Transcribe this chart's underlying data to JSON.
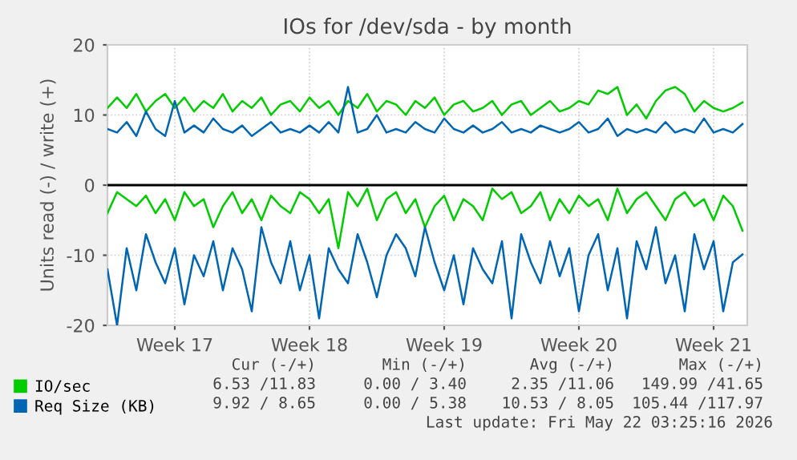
{
  "chart_data": {
    "type": "line",
    "title": "IOs for /dev/sda - by month",
    "ylabel": "Units read (-) / write (+)",
    "categories": [
      null,
      null,
      null,
      null,
      null,
      null,
      null,
      "Week 17",
      null,
      null,
      null,
      null,
      null,
      null,
      null,
      null,
      null,
      null,
      null,
      null,
      null,
      "Week 18",
      null,
      null,
      null,
      null,
      null,
      null,
      null,
      null,
      null,
      null,
      null,
      null,
      null,
      "Week 19",
      null,
      null,
      null,
      null,
      null,
      null,
      null,
      null,
      null,
      null,
      null,
      null,
      null,
      "Week 20",
      null,
      null,
      null,
      null,
      null,
      null,
      null,
      null,
      null,
      null,
      null,
      null,
      null,
      "Week 21",
      null,
      null,
      null
    ],
    "series": [
      {
        "name": "IO/sec",
        "color": "#00cc00",
        "values": [
          11,
          12.5,
          11,
          13,
          10.5,
          12,
          13,
          11,
          12.5,
          10.5,
          12,
          11,
          13,
          10.5,
          12,
          11,
          12.5,
          10,
          11.5,
          12,
          10.5,
          12.5,
          11,
          12,
          10,
          12,
          11,
          13,
          10.5,
          12,
          11.5,
          10,
          12,
          11,
          12.5,
          10,
          11.5,
          12,
          10.5,
          11,
          12,
          10,
          11.5,
          12,
          10,
          11,
          12,
          10.5,
          11,
          12,
          11.5,
          13.5,
          13,
          14,
          10,
          11.5,
          9.5,
          12,
          13.5,
          14,
          13,
          10.5,
          12,
          11,
          10.5,
          11,
          11.8
        ]
      },
      {
        "name": "Req Size (KB)",
        "color": "#0066b3",
        "values": [
          8,
          7.5,
          9,
          7,
          10.5,
          8,
          7,
          12,
          7.5,
          8.5,
          7.5,
          9.5,
          8,
          7.5,
          8.5,
          7,
          8,
          9,
          7.5,
          8,
          7.5,
          8.5,
          7.5,
          9,
          7.5,
          14,
          7.5,
          8,
          10,
          7.5,
          8,
          7.5,
          9,
          8,
          7.5,
          9.5,
          8,
          7.5,
          8.5,
          7.5,
          8,
          9,
          7.5,
          8,
          7.5,
          8.5,
          8,
          7.5,
          8,
          9,
          7.5,
          8,
          9.5,
          7,
          8,
          7.5,
          8,
          7.5,
          9,
          7.5,
          8,
          7.5,
          9.5,
          7.5,
          8,
          7.5,
          8.7
        ]
      },
      {
        "color": "#00cc00",
        "values": [
          -4,
          -1,
          -2,
          -3,
          -1.5,
          -4,
          -2,
          -5,
          -1,
          -3,
          -2,
          -6,
          -3,
          -1,
          -4,
          -2,
          -5,
          -1.5,
          -3,
          -4,
          -1,
          -2,
          -4,
          -2,
          -9,
          -1,
          -3,
          -0.5,
          -5,
          -2,
          -1,
          -4,
          -2,
          -6,
          -3,
          -1.5,
          -5,
          -2,
          -3,
          -5,
          -0.5,
          -2,
          -1,
          -4,
          -3,
          -1,
          -5,
          -2,
          -4,
          -1.5,
          -3,
          -2,
          -5,
          -0.5,
          -4,
          -2,
          -1,
          -3,
          -5,
          -2,
          -1,
          -3,
          -2,
          -5,
          -1.5,
          -3,
          -6.5
        ]
      },
      {
        "color": "#0066b3",
        "values": [
          -12,
          -20,
          -9,
          -15,
          -7,
          -11,
          -14,
          -9,
          -17,
          -10,
          -13,
          -8,
          -15,
          -9,
          -12,
          -18,
          -6,
          -11,
          -14,
          -8,
          -15,
          -10,
          -19,
          -9,
          -12,
          -14,
          -7,
          -11,
          -16,
          -10,
          -7,
          -9,
          -13,
          -6,
          -11,
          -15,
          -10,
          -17,
          -9,
          -12,
          -14,
          -8,
          -19,
          -7,
          -11,
          -14,
          -8,
          -13,
          -9,
          -18,
          -10,
          -7,
          -15,
          -9,
          -19,
          -8,
          -12,
          -6,
          -14,
          -10,
          -18,
          -7,
          -12,
          -8,
          -18,
          -11,
          -9.9
        ]
      }
    ],
    "ylim": [
      -20,
      20
    ],
    "yticks": [
      -20,
      -10,
      0,
      10,
      20
    ],
    "ref_lines": [
      {
        "axis": "y",
        "value": 0,
        "color": "#000000"
      }
    ],
    "grid": true,
    "legend": "bottom left",
    "line_style": "solid",
    "marker": "none",
    "annotations": [
      "Cur (-/+)",
      "Min (-/+)",
      "Avg (-/+)",
      "Max (-/+)",
      "6.53 /11.83",
      "0.00 / 3.40",
      "2.35 /11.06",
      "149.99 /41.65",
      "9.92 / 8.65",
      "0.00 / 5.38",
      "10.53 / 8.05",
      "105.44 /117.97",
      "Last update: Fri May 22 03:25:16 2026"
    ]
  }
}
